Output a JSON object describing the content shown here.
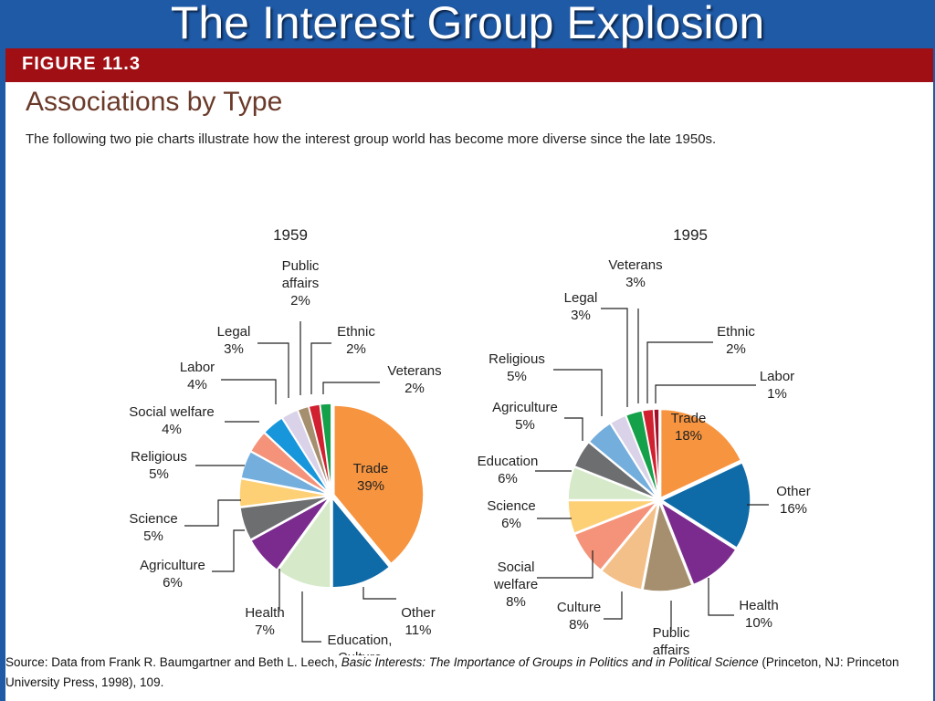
{
  "slide": {
    "title": "The Interest Group Explosion"
  },
  "figure": {
    "label": "FIGURE 11.3",
    "heading": "Associations by Type",
    "caption": "The following two pie charts illustrate how the interest group world has become more diverse since the late 1950s."
  },
  "source": {
    "prefix": "Source: Data from Frank R. Baumgartner and Beth L. Leech, ",
    "book_title": "Basic Interests: The Importance of Groups in Politics and in Political Science",
    "suffix": " (Princeton, NJ: Princeton University Press, 1998), 109."
  },
  "chart_data": [
    {
      "type": "pie",
      "title": "1959",
      "slices": [
        {
          "label": "Trade",
          "value": 39,
          "color": "#f7943f"
        },
        {
          "label": "Other",
          "value": 11,
          "color": "#0f6aa8"
        },
        {
          "label": "Education, Culture",
          "value": 10,
          "color": "#d6e9c9"
        },
        {
          "label": "Health",
          "value": 7,
          "color": "#7b2b8e"
        },
        {
          "label": "Agriculture",
          "value": 6,
          "color": "#6d6e70"
        },
        {
          "label": "Science",
          "value": 5,
          "color": "#fdd076"
        },
        {
          "label": "Religious",
          "value": 5,
          "color": "#74aedd"
        },
        {
          "label": "Social welfare",
          "value": 4,
          "color": "#f4937a"
        },
        {
          "label": "Labor",
          "value": 4,
          "color": "#1796dc"
        },
        {
          "label": "Legal",
          "value": 3,
          "color": "#d9d2e8"
        },
        {
          "label": "Public affairs",
          "value": 2,
          "color": "#a58f6e"
        },
        {
          "label": "Ethnic",
          "value": 2,
          "color": "#d1202f"
        },
        {
          "label": "Veterans",
          "value": 2,
          "color": "#15a04a"
        }
      ]
    },
    {
      "type": "pie",
      "title": "1995",
      "slices": [
        {
          "label": "Trade",
          "value": 18,
          "color": "#f7943f"
        },
        {
          "label": "Other",
          "value": 16,
          "color": "#0f6aa8"
        },
        {
          "label": "Health",
          "value": 10,
          "color": "#7b2b8e"
        },
        {
          "label": "Public affairs",
          "value": 9,
          "color": "#a58f6e"
        },
        {
          "label": "Culture",
          "value": 8,
          "color": "#f4c08a"
        },
        {
          "label": "Social welfare",
          "value": 8,
          "color": "#f4937a"
        },
        {
          "label": "Science",
          "value": 6,
          "color": "#fdd076"
        },
        {
          "label": "Education",
          "value": 6,
          "color": "#d6e9c9"
        },
        {
          "label": "Agriculture",
          "value": 5,
          "color": "#6d6e70"
        },
        {
          "label": "Religious",
          "value": 5,
          "color": "#74aedd"
        },
        {
          "label": "Legal",
          "value": 3,
          "color": "#d9d2e8"
        },
        {
          "label": "Veterans",
          "value": 3,
          "color": "#15a04a"
        },
        {
          "label": "Ethnic",
          "value": 2,
          "color": "#d1202f"
        },
        {
          "label": "Labor",
          "value": 1,
          "color": "#a1102a"
        }
      ]
    }
  ]
}
